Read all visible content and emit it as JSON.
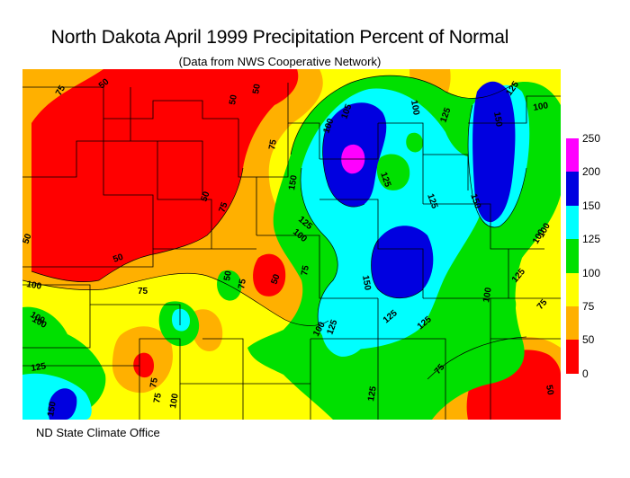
{
  "header": {
    "title": "North Dakota April 1999 Precipitation Percent of Normal",
    "subtitle": "(Data from NWS Cooperative Network)"
  },
  "footer": {
    "credit": "ND State Climate Office"
  },
  "colors": {
    "c0_50": "#ff0000",
    "c50_75": "#ffb000",
    "c75_100": "#ffff00",
    "c100_125": "#00e000",
    "c125_150": "#00ffff",
    "c150_200": "#0000e0",
    "c200_250": "#ff00ff"
  },
  "legend": {
    "ticks": [
      "250",
      "200",
      "150",
      "125",
      "100",
      "75",
      "50",
      "0"
    ],
    "bands": [
      {
        "range": "200-250",
        "color": "#ff00ff"
      },
      {
        "range": "150-200",
        "color": "#0000e0"
      },
      {
        "range": "125-150",
        "color": "#00ffff"
      },
      {
        "range": "100-125",
        "color": "#00e000"
      },
      {
        "range": "75-100",
        "color": "#ffff00"
      },
      {
        "range": "50-75",
        "color": "#ffb000"
      },
      {
        "range": "0-50",
        "color": "#ff0000"
      }
    ]
  },
  "contour_labels": [
    {
      "text": "75"
    },
    {
      "text": "50"
    },
    {
      "text": "50"
    },
    {
      "text": "50"
    },
    {
      "text": "75"
    },
    {
      "text": "150"
    },
    {
      "text": "100"
    },
    {
      "text": "105"
    },
    {
      "text": "100"
    },
    {
      "text": "125"
    },
    {
      "text": "150"
    },
    {
      "text": "125"
    },
    {
      "text": "100"
    },
    {
      "text": "50"
    },
    {
      "text": "50"
    },
    {
      "text": "75"
    },
    {
      "text": "125"
    },
    {
      "text": "100"
    },
    {
      "text": "125"
    },
    {
      "text": "125"
    },
    {
      "text": "150"
    },
    {
      "text": "100"
    },
    {
      "text": "50"
    },
    {
      "text": "75"
    },
    {
      "text": "50"
    },
    {
      "text": "75"
    },
    {
      "text": "75"
    },
    {
      "text": "150"
    },
    {
      "text": "100"
    },
    {
      "text": "100"
    },
    {
      "text": "100"
    },
    {
      "text": "75"
    },
    {
      "text": "125"
    },
    {
      "text": "125"
    },
    {
      "text": "100"
    },
    {
      "text": "75"
    },
    {
      "text": "125"
    },
    {
      "text": "100"
    },
    {
      "text": "100"
    },
    {
      "text": "125"
    },
    {
      "text": "75"
    },
    {
      "text": "75"
    },
    {
      "text": "150"
    },
    {
      "text": "50"
    },
    {
      "text": "50"
    },
    {
      "text": "100"
    },
    {
      "text": "125"
    },
    {
      "text": "125"
    }
  ]
}
